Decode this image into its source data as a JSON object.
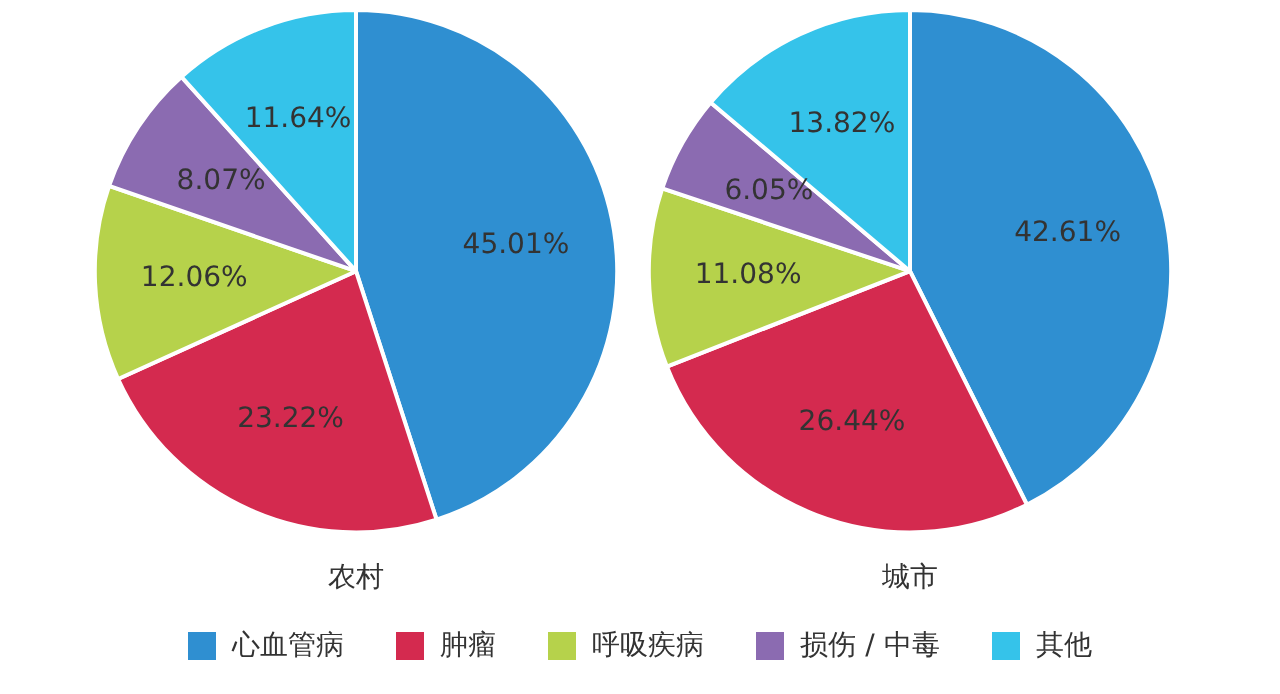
{
  "chart_data": [
    {
      "type": "pie",
      "title": "农村",
      "categories": [
        "心血管病",
        "肿瘤",
        "呼吸疾病",
        "损伤 / 中毒",
        "其他"
      ],
      "values": [
        45.01,
        23.22,
        12.06,
        8.07,
        11.64
      ],
      "value_labels": [
        "45.01%",
        "23.22%",
        "12.06%",
        "8.07%",
        "11.64%"
      ],
      "colors": [
        "#2f8fd1",
        "#d42a4f",
        "#b6d24b",
        "#8b6bb1",
        "#35c3ea"
      ],
      "legend": "bottom"
    },
    {
      "type": "pie",
      "title": "城市",
      "categories": [
        null,
        null,
        null,
        null,
        null
      ],
      "values": [
        42.61,
        26.44,
        11.08,
        6.05,
        13.82
      ],
      "value_labels": [
        "42.61%",
        "26.44%",
        "11.08%",
        "6.05%",
        "13.82%"
      ],
      "colors": [
        "#2f8fd1",
        "#d42a4f",
        "#b6d24b",
        "#8b6bb1",
        "#35c3ea"
      ]
    }
  ]
}
